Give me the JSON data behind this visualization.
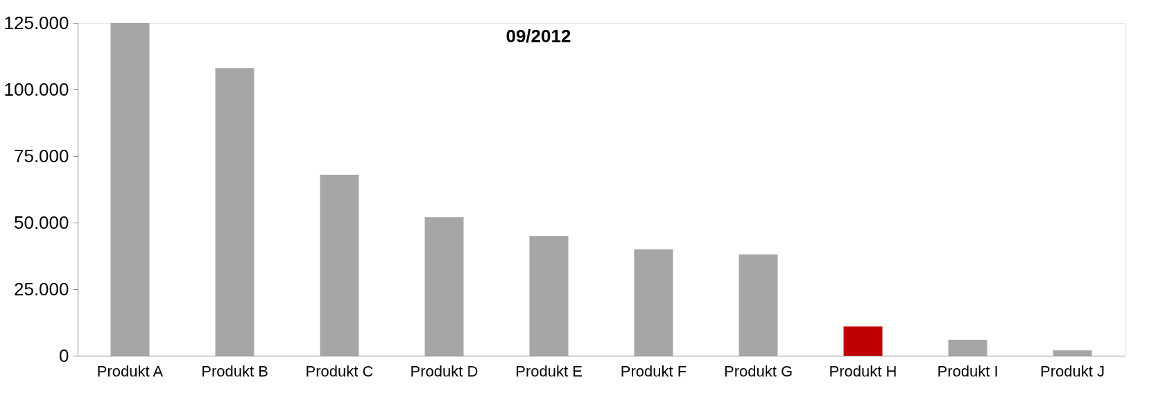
{
  "chart_data": {
    "type": "bar",
    "title": "09/2012",
    "categories": [
      "Produkt A",
      "Produkt B",
      "Produkt C",
      "Produkt D",
      "Produkt E",
      "Produkt F",
      "Produkt G",
      "Produkt H",
      "Produkt I",
      "Produkt J"
    ],
    "values": [
      125000,
      108000,
      68000,
      52000,
      45000,
      40000,
      38000,
      11000,
      6000,
      2000
    ],
    "colors": [
      "#a6a6a6",
      "#a6a6a6",
      "#a6a6a6",
      "#a6a6a6",
      "#a6a6a6",
      "#a6a6a6",
      "#a6a6a6",
      "#c00000",
      "#a6a6a6",
      "#a6a6a6"
    ],
    "ylim": [
      0,
      125000
    ],
    "yticks": [
      {
        "value": 0,
        "label": "0"
      },
      {
        "value": 25000,
        "label": "25.000"
      },
      {
        "value": 50000,
        "label": "50.000"
      },
      {
        "value": 75000,
        "label": "75.000"
      },
      {
        "value": 100000,
        "label": "100.000"
      },
      {
        "value": 125000,
        "label": "125.000"
      }
    ],
    "grid": false
  }
}
